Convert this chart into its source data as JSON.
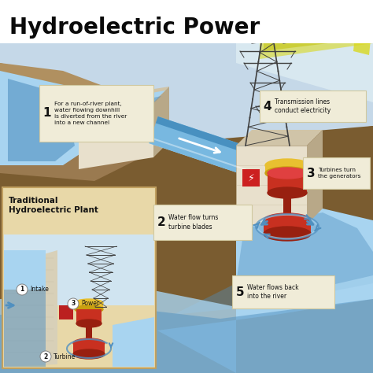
{
  "title": "Hydroelectric Power",
  "bg_top": "#C8B89A",
  "bg_brown": "#8B6940",
  "sky_color": "#C5D8E8",
  "water_color": "#6AAFE6",
  "water_light": "#A8D4F0",
  "water_mid": "#5090C0",
  "concrete_light": "#E8E0CC",
  "concrete_mid": "#D0C4A8",
  "concrete_dark": "#B8A888",
  "concrete_shadow": "#988868",
  "pipe_top": "#A8D8F0",
  "pipe_mid": "#78B8E0",
  "pipe_bot": "#4890C0",
  "turbine_red": "#C83020",
  "turbine_dark": "#982010",
  "turbine_gold": "#E8C030",
  "turbine_gold_dark": "#C8A010",
  "tower_color": "#404040",
  "elec_yellow": "#D8D820",
  "elec_yellow2": "#C0C000",
  "ground_brown": "#7A5C30",
  "ground_light": "#9A7A50",
  "inset_bg": "#E8D8A8",
  "inset_border": "#C0A060",
  "ann_bg": "#F0ECD8",
  "ann_num_color": "#1a1a1a",
  "title_color": "#0a0a0a",
  "ann1_text": "For a run-of-river plant,\nwater flowing downhill\nis diverted from the river\ninto a new channel",
  "ann2_text": "Water flow turns\nturbine blades",
  "ann3_text": "Turbines turn\nthe generators",
  "ann4_text": "Transmission lines\nconduct electricity",
  "ann5_text": "Water flows back\ninto the river",
  "inset_title": "Traditional\nHydroelectric Plant",
  "inset_ann1": "Intake",
  "inset_ann2": "Turbine",
  "inset_ann3": "Power"
}
